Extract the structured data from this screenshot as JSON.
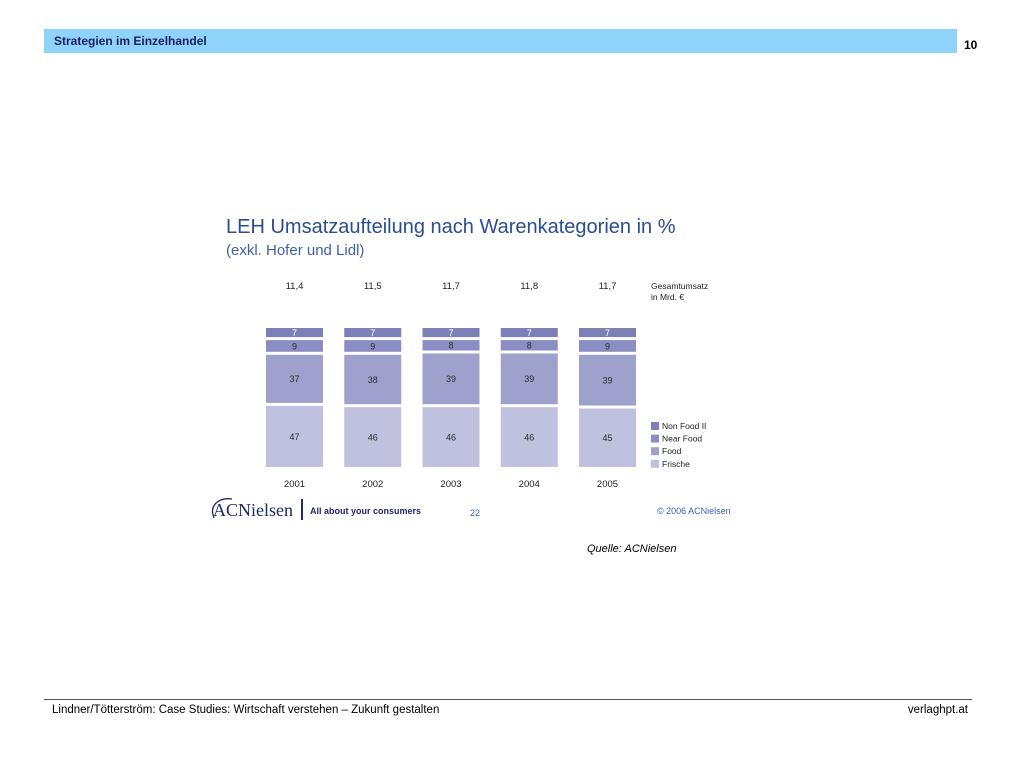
{
  "header": {
    "section_title": "Strategien im Einzelhandel",
    "page_number": "10"
  },
  "chart_data": {
    "type": "bar",
    "stacked": true,
    "title": "LEH Umsatzaufteilung nach Warenkategorien in %",
    "subtitle": "(exkl. Hofer und Lidl)",
    "categories": [
      "2001",
      "2002",
      "2003",
      "2004",
      "2005"
    ],
    "series": [
      {
        "name": "Non Food II",
        "values": [
          7,
          7,
          7,
          7,
          7
        ],
        "color": "#7c80b6"
      },
      {
        "name": "Near Food",
        "values": [
          9,
          9,
          8,
          8,
          9
        ],
        "color": "#8b8ec3"
      },
      {
        "name": "Food",
        "values": [
          37,
          38,
          39,
          39,
          39
        ],
        "color": "#9ea1cc"
      },
      {
        "name": "Frische",
        "values": [
          47,
          46,
          46,
          46,
          45
        ],
        "color": "#bfc1de"
      }
    ],
    "totals": {
      "label": [
        "Gesamtumsatz",
        "in Mrd. €"
      ],
      "values": [
        "11,4",
        "11,5",
        "11,7",
        "11,8",
        "11,7"
      ]
    },
    "legend_position": "right",
    "grid": false
  },
  "chart_footer": {
    "logo_text": "ACNielsen",
    "tagline": "All about your consumers",
    "page": "22",
    "copyright": "© 2006 ACNielsen"
  },
  "source": "Quelle: ACNielsen",
  "footer": {
    "left": "Lindner/Tötterström: Case Studies: Wirtschaft verstehen – Zukunft gestalten",
    "right": "verlaghpt.at"
  },
  "colors": {
    "header_bar": "#8fd3fb",
    "title": "#2b4d91",
    "accent_blue": "#3a63b0",
    "navy": "#1d2a6b"
  }
}
